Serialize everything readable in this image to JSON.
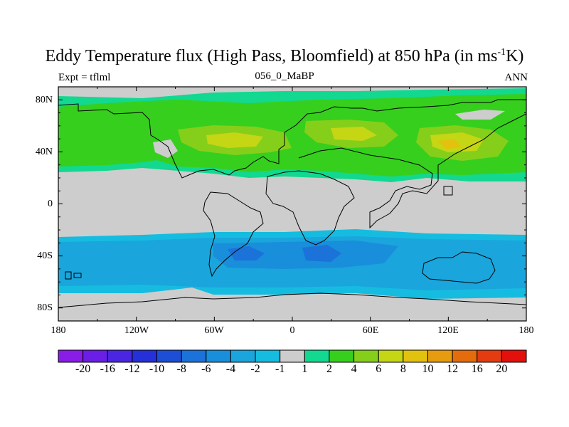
{
  "title_main": "Eddy Temperature flux (High Pass, Bloomfield) at 850 hPa (in ms",
  "title_sup": "-1",
  "title_end": "K)",
  "subtitle_left": "Expt = tflml",
  "subtitle_center": "056_0_MaBP",
  "subtitle_right": "ANN",
  "lat_labels": [
    "80N",
    "40N",
    "0",
    "40S",
    "80S"
  ],
  "lon_labels": [
    "180",
    "120W",
    "60W",
    "0",
    "60E",
    "120E",
    "180"
  ],
  "colorbar": {
    "labels": [
      "-20",
      "-16",
      "-12",
      "-10",
      "-8",
      "-6",
      "-4",
      "-2",
      "-1",
      "1",
      "2",
      "4",
      "6",
      "8",
      "10",
      "12",
      "16",
      "20"
    ],
    "colors": [
      "#8a1ce8",
      "#6a1ee6",
      "#4a26e3",
      "#2530d8",
      "#1c4fd6",
      "#1b72d8",
      "#198edb",
      "#1aa5dc",
      "#15bce0",
      "#cdcdcd",
      "#12d890",
      "#36cf1d",
      "#85cf1a",
      "#c4d614",
      "#e3c20f",
      "#e79c0f",
      "#e46c0c",
      "#e43b10",
      "#e4100b"
    ]
  },
  "map_colors": {
    "background": "#cdcdcd",
    "n_band": "#36cf1d",
    "n_edge": "#12d890",
    "n_core": "#85cf1a",
    "n_peak": "#c4d614",
    "n_max": "#e3c20f",
    "s_outer": "#15bce0",
    "s_band": "#1aa5dc",
    "s_inner": "#198edb",
    "s_core": "#1b72d8"
  }
}
